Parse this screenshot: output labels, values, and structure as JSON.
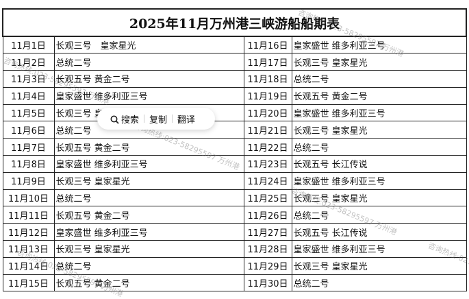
{
  "title": "2025年11月万州港三峡游船船期表",
  "rows": [
    {
      "d1": "11月1日",
      "s1": "长观三号　皇家星光",
      "d2": "11月16日",
      "s2": "皇家盛世 维多利亚三号"
    },
    {
      "d1": "11月2日",
      "s1": "总统二号",
      "d2": "11月17日",
      "s2": "长观三号 皇家星光"
    },
    {
      "d1": "11月3日",
      "s1": "长观五号 黄金二号",
      "d2": "11月18日",
      "s2": "总统二号"
    },
    {
      "d1": "11月4日",
      "s1": "皇家盛世 维多利亚三号",
      "d2": "11月19日",
      "s2": "长观五号 黄金二号"
    },
    {
      "d1": "11月5日",
      "s1": "长观三号 皇家星光",
      "d2": "11月20日",
      "s2": "皇家盛世 维多利亚三号"
    },
    {
      "d1": "11月6日",
      "s1": "总统二号",
      "d2": "11月21日",
      "s2": "长观三号 皇家星光"
    },
    {
      "d1": "11月7日",
      "s1": "长观五号 黄金二号",
      "d2": "11月22日",
      "s2": "总统二号"
    },
    {
      "d1": "11月8日",
      "s1": "皇家盛世 维多利亚三号",
      "d2": "11月23日",
      "s2": "长观五号 长江传说"
    },
    {
      "d1": "11月9日",
      "s1": "长观三号 皇家星光",
      "d2": "11月24日",
      "s2": "皇家盛世 维多利亚三号"
    },
    {
      "d1": "11月10日",
      "s1": "总统二号",
      "d2": "11月25日",
      "s2": "长观三号 皇家星光"
    },
    {
      "d1": "11月11日",
      "s1": "长观五号 黄金二号",
      "d2": "11月26日",
      "s2": "总统二号"
    },
    {
      "d1": "11月12日",
      "s1": "皇家盛世 维多利亚三号",
      "d2": "11月27日",
      "s2": "长观五号 长江传说"
    },
    {
      "d1": "11月13日",
      "s1": "长观三号 皇家星光",
      "d2": "11月28日",
      "s2": "皇家盛世 维多利亚三号"
    },
    {
      "d1": "11月14日",
      "s1": "总统二号",
      "d2": "11月29日",
      "s2": "长观三号 皇家星光"
    },
    {
      "d1": "11月15日",
      "s1": "长观五号 黄金二号",
      "d2": "11月30日",
      "s2": "总统二号"
    }
  ],
  "watermark": "咨询热线:023-58295597 万州港",
  "popup": {
    "search": "搜索",
    "copy": "复制",
    "translate": "翻译",
    "search_icon": "search-icon"
  }
}
